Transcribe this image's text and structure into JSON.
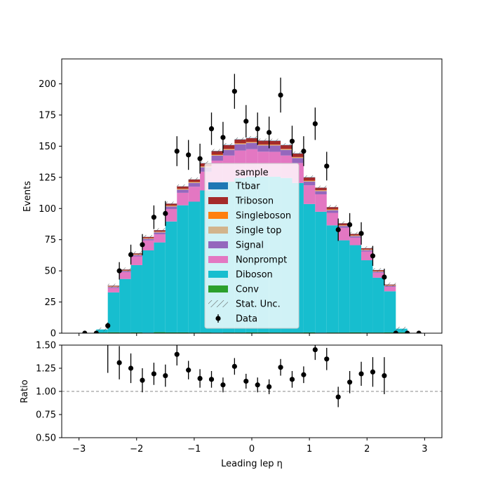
{
  "chart_data": [
    {
      "type": "bar",
      "stacked": true,
      "histtype": "step-filled",
      "xlabel": "Leading lep η",
      "ylabel": "Events",
      "xlim": [
        -3.3,
        3.3
      ],
      "ylim": [
        0,
        220
      ],
      "bin_edges": [
        -2.7,
        -2.5,
        -2.3,
        -2.1,
        -1.9,
        -1.7,
        -1.5,
        -1.3,
        -1.1,
        -0.9,
        -0.7,
        -0.5,
        -0.3,
        -0.1,
        0.1,
        0.3,
        0.5,
        0.7,
        0.9,
        1.1,
        1.3,
        1.5,
        1.7,
        1.9,
        2.1,
        2.3,
        2.5,
        2.7
      ],
      "yticks": [
        0,
        25,
        50,
        75,
        100,
        125,
        150,
        175,
        200
      ],
      "xticks": [
        -3,
        -2,
        -1,
        0,
        1,
        2,
        3
      ],
      "series": [
        {
          "name": "Conv",
          "color": "#2ca02c",
          "values": [
            0.5,
            0.7,
            0.5,
            0.6,
            0.4,
            0.8,
            0.6,
            0.6,
            0.5,
            0.5,
            0.4,
            0.5,
            0.5,
            0.6,
            0.6,
            0.5,
            0.5,
            0.5,
            0.6,
            0.4,
            0.5,
            0.5,
            0.6,
            0.5,
            0.5,
            0.6,
            0.6
          ]
        },
        {
          "name": "Diboson",
          "color": "#17becf",
          "values": [
            2.5,
            32,
            43,
            54,
            66,
            72,
            89,
            102,
            105,
            114,
            118,
            121,
            124,
            125,
            125,
            125,
            124,
            120,
            103,
            97,
            86,
            74,
            70,
            58,
            44,
            33,
            3
          ]
        },
        {
          "name": "Nonprompt",
          "color": "#e377c2",
          "values": [
            0,
            3.5,
            5.5,
            7,
            8,
            6.5,
            10,
            10,
            12,
            15,
            20,
            21,
            22,
            22,
            20,
            20,
            18,
            16,
            15,
            14,
            10,
            10,
            6,
            7,
            4,
            3.5,
            0
          ]
        },
        {
          "name": "Signal",
          "color": "#9467bd",
          "values": [
            0,
            0.8,
            0.8,
            1,
            1.2,
            1.5,
            2,
            2.5,
            3,
            3.5,
            4,
            4.5,
            5,
            5,
            5,
            5,
            4.5,
            4,
            3,
            2.5,
            2,
            1.5,
            1.2,
            1,
            0.8,
            0.8,
            0
          ]
        },
        {
          "name": "Single top",
          "color": "#d2b48c",
          "values": [
            0,
            0.3,
            0.3,
            0.4,
            0.4,
            0.4,
            0.5,
            0.5,
            0.5,
            0.5,
            0.5,
            0.5,
            0.5,
            0.5,
            0.5,
            0.5,
            0.5,
            0.5,
            0.5,
            0.5,
            0.5,
            0.4,
            0.4,
            0.4,
            0.3,
            0.3,
            0
          ]
        },
        {
          "name": "Singleboson",
          "color": "#ff7f0e",
          "values": [
            0,
            0.2,
            0.2,
            0.2,
            0.2,
            0.2,
            0.3,
            0.3,
            0.3,
            0.3,
            0.3,
            0.3,
            0.3,
            0.3,
            0.3,
            0.3,
            0.3,
            0.3,
            0.3,
            0.3,
            0.3,
            0.2,
            0.2,
            0.2,
            0.2,
            0.2,
            0
          ]
        },
        {
          "name": "Triboson",
          "color": "#a52a2a",
          "values": [
            0,
            0.5,
            0.7,
            0.8,
            1,
            1.2,
            1.5,
            1.8,
            2,
            2.5,
            2.8,
            3,
            3,
            3,
            3,
            3,
            3,
            2.8,
            2.5,
            2,
            1.8,
            1.5,
            1.2,
            1,
            0.8,
            0.6,
            0
          ]
        },
        {
          "name": "Ttbar",
          "color": "#1f77b4",
          "values": [
            0,
            0.1,
            0.1,
            0.1,
            0.1,
            0.1,
            0.1,
            0.1,
            0.1,
            0.2,
            0.2,
            0.2,
            0.2,
            0.2,
            0.2,
            0.2,
            0.2,
            0.2,
            0.2,
            0.1,
            0.1,
            0.1,
            0.1,
            0.1,
            0.1,
            0.1,
            0
          ]
        }
      ],
      "data": {
        "name": "Data",
        "x": [
          -2.9,
          -2.7,
          -2.5,
          -2.3,
          -2.1,
          -1.9,
          -1.7,
          -1.5,
          -1.3,
          -1.1,
          -0.9,
          -0.7,
          -0.5,
          -0.3,
          -0.1,
          0.1,
          0.3,
          0.5,
          0.7,
          0.9,
          1.1,
          1.3,
          1.5,
          1.7,
          1.9,
          2.1,
          2.3,
          2.5,
          2.7,
          2.9
        ],
        "y": [
          0,
          0,
          6,
          50,
          63,
          71,
          93,
          96,
          146,
          143,
          140,
          164,
          157,
          194,
          170,
          164,
          161,
          191,
          154,
          146,
          168,
          134,
          83,
          87,
          80,
          62,
          45,
          0,
          0,
          0
        ],
        "yerr": [
          0,
          0,
          2.5,
          7,
          8,
          8.5,
          9.5,
          10,
          12,
          12,
          12,
          13,
          12.5,
          14,
          13,
          13,
          12.7,
          14,
          12.4,
          12,
          13,
          11.5,
          9,
          9.3,
          9,
          8,
          6.7,
          0,
          0,
          0
        ]
      },
      "stat_unc": {
        "name": "Stat. Unc.",
        "hatch": "////",
        "color": "#555555"
      },
      "legend": {
        "title": "sample",
        "placement": "center",
        "entries": [
          "Ttbar",
          "Triboson",
          "Singleboson",
          "Single top",
          "Signal",
          "Nonprompt",
          "Diboson",
          "Conv",
          "Stat. Unc.",
          "Data"
        ]
      }
    },
    {
      "type": "scatter",
      "ylabel": "Ratio",
      "xlabel": "Leading lep η",
      "xlim": [
        -3.3,
        3.3
      ],
      "ylim": [
        0.5,
        1.5
      ],
      "yticks": [
        0.5,
        0.75,
        1.0,
        1.25,
        1.5
      ],
      "ytick_labels": [
        "0.50",
        "0.75",
        "1.00",
        "1.25",
        "1.50"
      ],
      "xticks": [
        -3,
        -2,
        -1,
        0,
        1,
        2,
        3
      ],
      "reference_line": 1.0,
      "x": [
        -2.5,
        -2.3,
        -2.1,
        -1.9,
        -1.7,
        -1.5,
        -1.3,
        -1.1,
        -0.9,
        -0.7,
        -0.5,
        -0.3,
        -0.1,
        0.1,
        0.3,
        0.5,
        0.7,
        0.9,
        1.1,
        1.3,
        1.5,
        1.7,
        1.9,
        2.1,
        2.3
      ],
      "y": [
        1.6,
        1.31,
        1.25,
        1.12,
        1.19,
        1.17,
        1.4,
        1.23,
        1.14,
        1.13,
        1.07,
        1.27,
        1.11,
        1.07,
        1.05,
        1.26,
        1.13,
        1.18,
        1.45,
        1.35,
        0.94,
        1.1,
        1.19,
        1.21,
        1.17
      ],
      "yerr": [
        0.4,
        0.18,
        0.16,
        0.13,
        0.12,
        0.12,
        0.12,
        0.1,
        0.1,
        0.09,
        0.08,
        0.09,
        0.08,
        0.08,
        0.08,
        0.09,
        0.09,
        0.09,
        0.11,
        0.12,
        0.11,
        0.12,
        0.13,
        0.16,
        0.2
      ]
    }
  ]
}
